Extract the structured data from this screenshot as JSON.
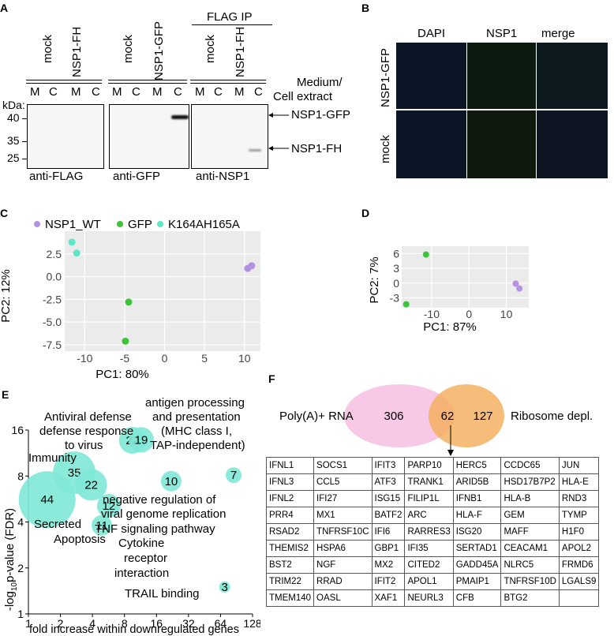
{
  "panelA": {
    "letter": "A",
    "flag_ip": "FLAG IP",
    "samples": [
      "mock",
      "NSP1-FH",
      "mock",
      "NSP1-GFP",
      "mock",
      "NSP1-FH"
    ],
    "lanes": [
      "M",
      "C",
      "M",
      "C",
      "M",
      "C",
      "M",
      "C",
      "M",
      "C",
      "M",
      "C"
    ],
    "medium_label": "Medium/",
    "cell_label": "Cell extract",
    "kda": "kDa",
    "markers": [
      "40",
      "35",
      "25"
    ],
    "band_gfp": "NSP1-GFP",
    "band_fh": "NSP1-FH",
    "antibodies": [
      "anti-FLAG",
      "anti-GFP",
      "anti-NSP1"
    ]
  },
  "panelB": {
    "letter": "B",
    "columns": [
      "DAPI",
      "NSP1",
      "merge"
    ],
    "rows": [
      "NSP1-GFP",
      "mock"
    ]
  },
  "panelC": {
    "letter": "C",
    "chart_data": {
      "type": "scatter",
      "legend": [
        "NSP1_WT",
        "GFP",
        "K164AH165A"
      ],
      "colors": {
        "NSP1_WT": "#b592e0",
        "GFP": "#3dc43a",
        "K164AH165A": "#5ee6c8"
      },
      "xlabel": "PC1: 80%",
      "ylabel": "PC2: 12%",
      "xticks": [
        "-10",
        "-5",
        "0",
        "5",
        "10"
      ],
      "yticks": [
        "2.5",
        "0.0",
        "-2.5",
        "-5.0",
        "-7.5"
      ],
      "xlim": [
        -12.5,
        12
      ],
      "ylim": [
        -8.2,
        5
      ],
      "points": [
        {
          "series": "K164AH165A",
          "x": -11.6,
          "y": 3.8
        },
        {
          "series": "K164AH165A",
          "x": -11.0,
          "y": 2.6
        },
        {
          "series": "GFP",
          "x": -4.5,
          "y": -2.8
        },
        {
          "series": "GFP",
          "x": -4.9,
          "y": -7.1
        },
        {
          "series": "NSP1_WT",
          "x": 10.4,
          "y": 0.9
        },
        {
          "series": "NSP1_WT",
          "x": 10.9,
          "y": 1.2
        }
      ]
    }
  },
  "panelD": {
    "letter": "D",
    "chart_data": {
      "type": "scatter",
      "xlabel": "PC1: 87%",
      "ylabel": "PC2: 7%",
      "xticks": [
        "-10",
        "0",
        "10"
      ],
      "yticks": [
        "6",
        "3",
        "0",
        "-3"
      ],
      "xlim": [
        -18,
        16
      ],
      "ylim": [
        -5,
        7.5
      ],
      "points": [
        {
          "series": "GFP",
          "x": -11.5,
          "y": 5.8
        },
        {
          "series": "GFP",
          "x": -16.8,
          "y": -4.3
        },
        {
          "series": "NSP1_WT",
          "x": 12.5,
          "y": -0.1
        },
        {
          "series": "NSP1_WT",
          "x": 13.5,
          "y": -1.1
        }
      ]
    }
  },
  "panelE": {
    "letter": "E",
    "chart_data": {
      "type": "scatter",
      "xlabel": "fold increase within downregulated genes",
      "ylabel": "-log10 p-value (FDR)",
      "ylabel_main": "-log",
      "ylabel_sub": "10",
      "ylabel_rest": "p-value (FDR)",
      "xticks": [
        "1",
        "2",
        "4",
        "8",
        "16",
        "32",
        "64",
        "128"
      ],
      "yticks": [
        "16",
        "8",
        "4",
        "2",
        "1"
      ],
      "bubble_color": "#7fe8d6",
      "bubbles": [
        {
          "label": "44",
          "fold": 1.5,
          "fdr": 5.6,
          "r": 36
        },
        {
          "label": "35",
          "fold": 2.7,
          "fdr": 8.4,
          "r": 27
        },
        {
          "label": "22",
          "fold": 3.9,
          "fdr": 7.0,
          "r": 20
        },
        {
          "label": "22",
          "fold": 9.5,
          "fdr": 13.7,
          "r": 17
        },
        {
          "label": "19",
          "fold": 11.5,
          "fdr": 13.8,
          "r": 16
        },
        {
          "label": "12",
          "fold": 5.7,
          "fdr": 5.1,
          "r": 15
        },
        {
          "label": "11",
          "fold": 4.9,
          "fdr": 3.8,
          "r": 13
        },
        {
          "label": "10",
          "fold": 22,
          "fdr": 7.4,
          "r": 13
        },
        {
          "label": "7",
          "fold": 85,
          "fdr": 8.1,
          "r": 10
        },
        {
          "label": "3",
          "fold": 70,
          "fdr": 1.5,
          "r": 7
        }
      ],
      "annotations": {
        "antiviral": "Antiviral defense",
        "defense1": "defense response",
        "defense2": "to virus",
        "immunity": "Immunity",
        "antigen1": "antigen processing",
        "antigen2": "and presentation",
        "antigen3": "(MHC class I,",
        "antigen4": "TAP-independent)",
        "negreg1": "negative regulation of",
        "negreg2": "viral genome replication",
        "tnf": "TNF signaling pathway",
        "secreted": "Secreted",
        "apoptosis": "Apoptosis",
        "cytokine1": "Cytokine",
        "cytokine2": "receptor",
        "cytokine3": "interaction",
        "trail": "TRAIL binding"
      }
    }
  },
  "panelF": {
    "letter": "F",
    "venn": {
      "left_label": "Poly(A)+ RNA",
      "right_label": "Ribosome depl.",
      "left_only": "306",
      "overlap": "62",
      "right_only": "127",
      "left_color": "#f7c9e6",
      "right_color": "#f5b062"
    },
    "table": [
      [
        "IFNL1",
        "SOCS1",
        "IFIT3",
        "PARP10",
        "HERC5",
        "CCDC65",
        "JUN"
      ],
      [
        "IFNL3",
        "CCL5",
        "ATF3",
        "TRANK1",
        "ARID5B",
        "HSD17B7P2",
        "HLA-E"
      ],
      [
        "IFNL2",
        "IFI27",
        "ISG15",
        "FILIP1L",
        "IFNB1",
        "HLA-B",
        "RND3"
      ],
      [
        "PRR4",
        "MX1",
        "BATF2",
        "ARC",
        "HLA-F",
        "GEM",
        "TYMP"
      ],
      [
        "RSAD2",
        "TNFRSF10C",
        "IFI6",
        "RARRES3",
        "ISG20",
        "MAFF",
        "H1F0"
      ],
      [
        "THEMIS2",
        "HSPA6",
        "GBP1",
        "IFI35",
        "SERTAD1",
        "CEACAM1",
        "APOL2"
      ],
      [
        "BST2",
        "NGF",
        "MX2",
        "CITED2",
        "GADD45A",
        "NLRC5",
        "FRMD6"
      ],
      [
        "TRIM22",
        "RRAD",
        "IFIT2",
        "APOL1",
        "PMAIP1",
        "TNFRSF10D",
        "LGALS9"
      ],
      [
        "TMEM140",
        "OASL",
        "XAF1",
        "NEURL3",
        "CFB",
        "BTG2",
        ""
      ]
    ]
  }
}
